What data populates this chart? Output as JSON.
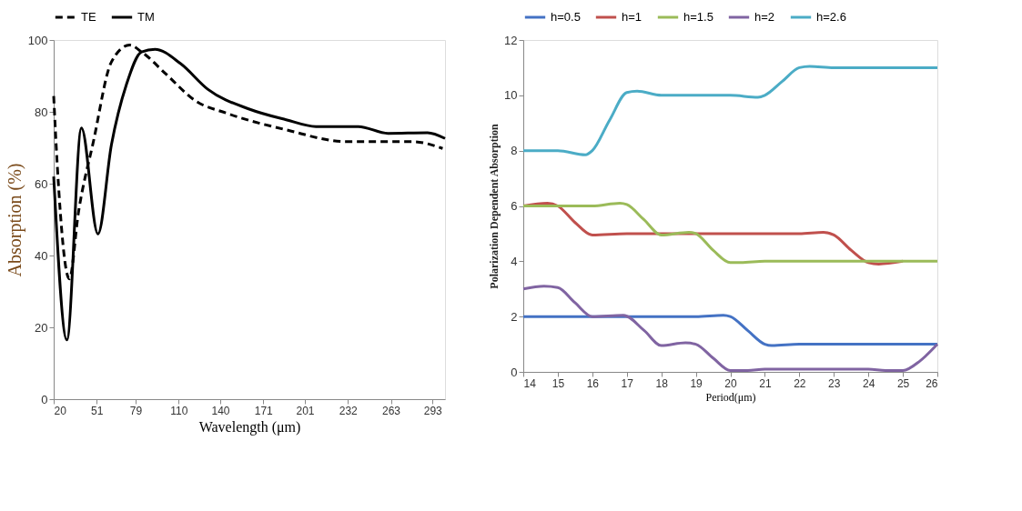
{
  "chart_data": [
    {
      "type": "line",
      "xlabel": "Wavelength (μm)",
      "ylabel": "Absorption (%)",
      "xlim": [
        20,
        302
      ],
      "ylim": [
        0,
        100
      ],
      "xticks": [
        20,
        51,
        79,
        110,
        140,
        171,
        201,
        232,
        263,
        293
      ],
      "yticks": [
        0,
        20,
        40,
        60,
        80,
        100
      ],
      "legend": "top",
      "grid": false,
      "series": [
        {
          "name": "TE",
          "color": "#000000",
          "line_style": "dashed",
          "x": [
            20,
            22.6,
            31.3,
            37.8,
            48.6,
            61.6,
            74.7,
            83.3,
            100.7,
            122.4,
            144,
            187.5,
            230.8,
            278.6,
            300.3
          ],
          "values": [
            84.4,
            65,
            33.5,
            51.9,
            71.7,
            93.9,
            98.6,
            96.7,
            90.6,
            83,
            79.7,
            75,
            71.7,
            71.7,
            69.8
          ]
        },
        {
          "name": "TM",
          "color": "#000000",
          "line_style": "solid",
          "x": [
            20,
            29.5,
            40,
            51.9,
            61.6,
            72.5,
            83.3,
            93,
            111.5,
            131,
            161.4,
            187.5,
            209,
            239.5,
            261,
            289.4,
            302
          ],
          "values": [
            62,
            16.5,
            75.5,
            46,
            70.8,
            87.7,
            96.7,
            97.4,
            93.4,
            86.3,
            80.7,
            77.8,
            75.9,
            75.9,
            74,
            74.2,
            72.6
          ]
        }
      ]
    },
    {
      "type": "line",
      "xlabel": "Period(μm)",
      "ylabel": "Polarization Dependent Absorption",
      "xlim": [
        14,
        26
      ],
      "ylim": [
        0,
        12
      ],
      "xticks": [
        14,
        15,
        16,
        17,
        18,
        19,
        20,
        21,
        22,
        23,
        24,
        25,
        26
      ],
      "yticks": [
        0,
        2,
        4,
        6,
        8,
        10,
        12
      ],
      "legend": "top",
      "grid": false,
      "series": [
        {
          "name": "h=0.5",
          "color": "#4472c4",
          "x": [
            14,
            15,
            16,
            17,
            18,
            19,
            19.8,
            20,
            20.5,
            21,
            21.2,
            22,
            23,
            24,
            25,
            26
          ],
          "values": [
            2,
            2,
            2,
            2,
            2,
            2,
            2.05,
            2,
            1.5,
            1,
            0.95,
            1,
            1,
            1,
            1,
            1
          ]
        },
        {
          "name": "h=1",
          "color": "#c0504d",
          "x": [
            14,
            14.7,
            15,
            15.5,
            16,
            17,
            18,
            19,
            20,
            21,
            22,
            22.7,
            23,
            23.5,
            24,
            24.3,
            25
          ],
          "values": [
            6,
            6.1,
            6,
            5.4,
            4.95,
            5,
            5,
            5,
            5,
            5,
            5,
            5.05,
            4.95,
            4.4,
            3.95,
            3.9,
            4
          ]
        },
        {
          "name": "h=1.5",
          "color": "#9bbb59",
          "x": [
            14,
            15,
            16,
            16.8,
            17,
            17.5,
            18,
            18.8,
            19,
            19.5,
            20,
            20.3,
            21,
            22,
            23,
            24,
            25,
            26
          ],
          "values": [
            6,
            6,
            6,
            6.1,
            6.05,
            5.5,
            4.95,
            5.05,
            5,
            4.4,
            3.95,
            3.95,
            4,
            4,
            4,
            4,
            4,
            4
          ]
        },
        {
          "name": "h=2",
          "color": "#8064a2",
          "x": [
            14,
            14.6,
            15,
            15.5,
            16,
            16.9,
            17.5,
            18,
            18.7,
            19,
            19.5,
            20,
            20.5,
            21,
            22,
            23,
            24,
            24.5,
            25,
            25.5,
            26
          ],
          "values": [
            3,
            3.1,
            3.05,
            2.5,
            2,
            2.05,
            1.5,
            0.95,
            1.05,
            1,
            0.5,
            0.05,
            0.05,
            0.1,
            0.1,
            0.1,
            0.1,
            0.05,
            0.05,
            0.4,
            1
          ]
        },
        {
          "name": "h=2.6",
          "color": "#4bacc6",
          "x": [
            14,
            15,
            15.8,
            16,
            16.5,
            17,
            17.3,
            18,
            19,
            20,
            20.8,
            21,
            21.5,
            22,
            22.3,
            23,
            24,
            25,
            26
          ],
          "values": [
            8,
            8,
            7.85,
            8,
            9.1,
            10.1,
            10.15,
            10,
            10,
            10,
            9.93,
            10,
            10.5,
            11,
            11.05,
            11,
            11,
            11,
            11
          ]
        }
      ]
    }
  ]
}
